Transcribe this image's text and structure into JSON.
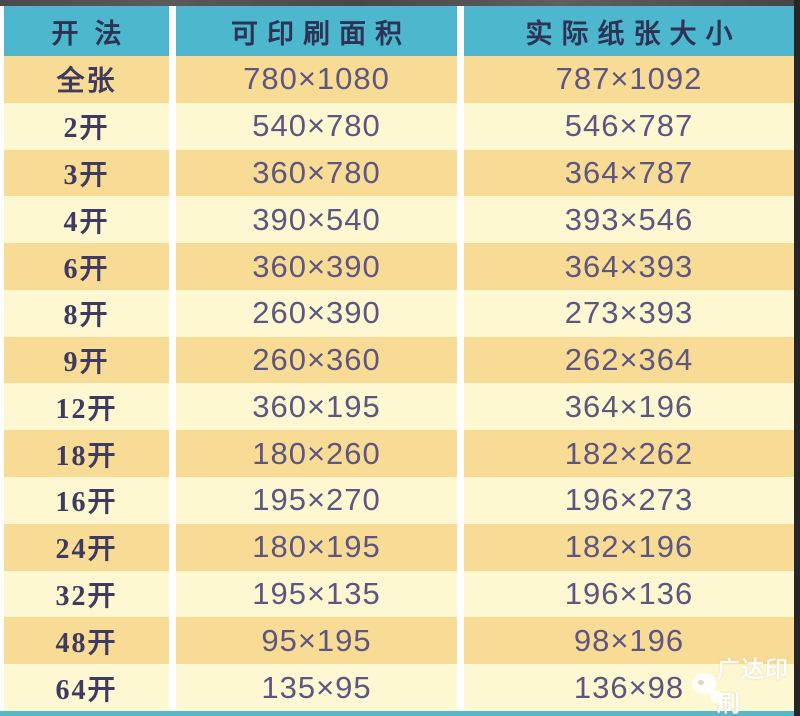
{
  "table": {
    "columns": [
      "开法",
      "可印刷面积",
      "实际纸张大小"
    ],
    "rows": [
      {
        "method": "全张",
        "printable": "780×1080",
        "actual": "787×1092"
      },
      {
        "method": "2开",
        "printable": "540×780",
        "actual": "546×787"
      },
      {
        "method": "3开",
        "printable": "360×780",
        "actual": "364×787"
      },
      {
        "method": "4开",
        "printable": "390×540",
        "actual": "393×546"
      },
      {
        "method": "6开",
        "printable": "360×390",
        "actual": "364×393"
      },
      {
        "method": "8开",
        "printable": "260×390",
        "actual": "273×393"
      },
      {
        "method": "9开",
        "printable": "260×360",
        "actual": "262×364"
      },
      {
        "method": "12开",
        "printable": "360×195",
        "actual": "364×196"
      },
      {
        "method": "18开",
        "printable": "180×260",
        "actual": "182×262"
      },
      {
        "method": "16开",
        "printable": "195×270",
        "actual": "196×273"
      },
      {
        "method": "24开",
        "printable": "180×195",
        "actual": "182×196"
      },
      {
        "method": "32开",
        "printable": "195×135",
        "actual": "196×136"
      },
      {
        "method": "48开",
        "printable": "95×195",
        "actual": "98×196"
      },
      {
        "method": "64开",
        "printable": "135×95",
        "actual": "136×98"
      }
    ]
  },
  "watermark": {
    "text": "广达印刷",
    "icon": "logo-blob-icon"
  },
  "colors": {
    "header_bg": "#4db7ce",
    "header_text": "#2c3355",
    "row_dark": "#f8dc95",
    "row_light": "#fdf8d1",
    "cell_text": "#5d5680",
    "accent_strip": "#58b7c5"
  }
}
